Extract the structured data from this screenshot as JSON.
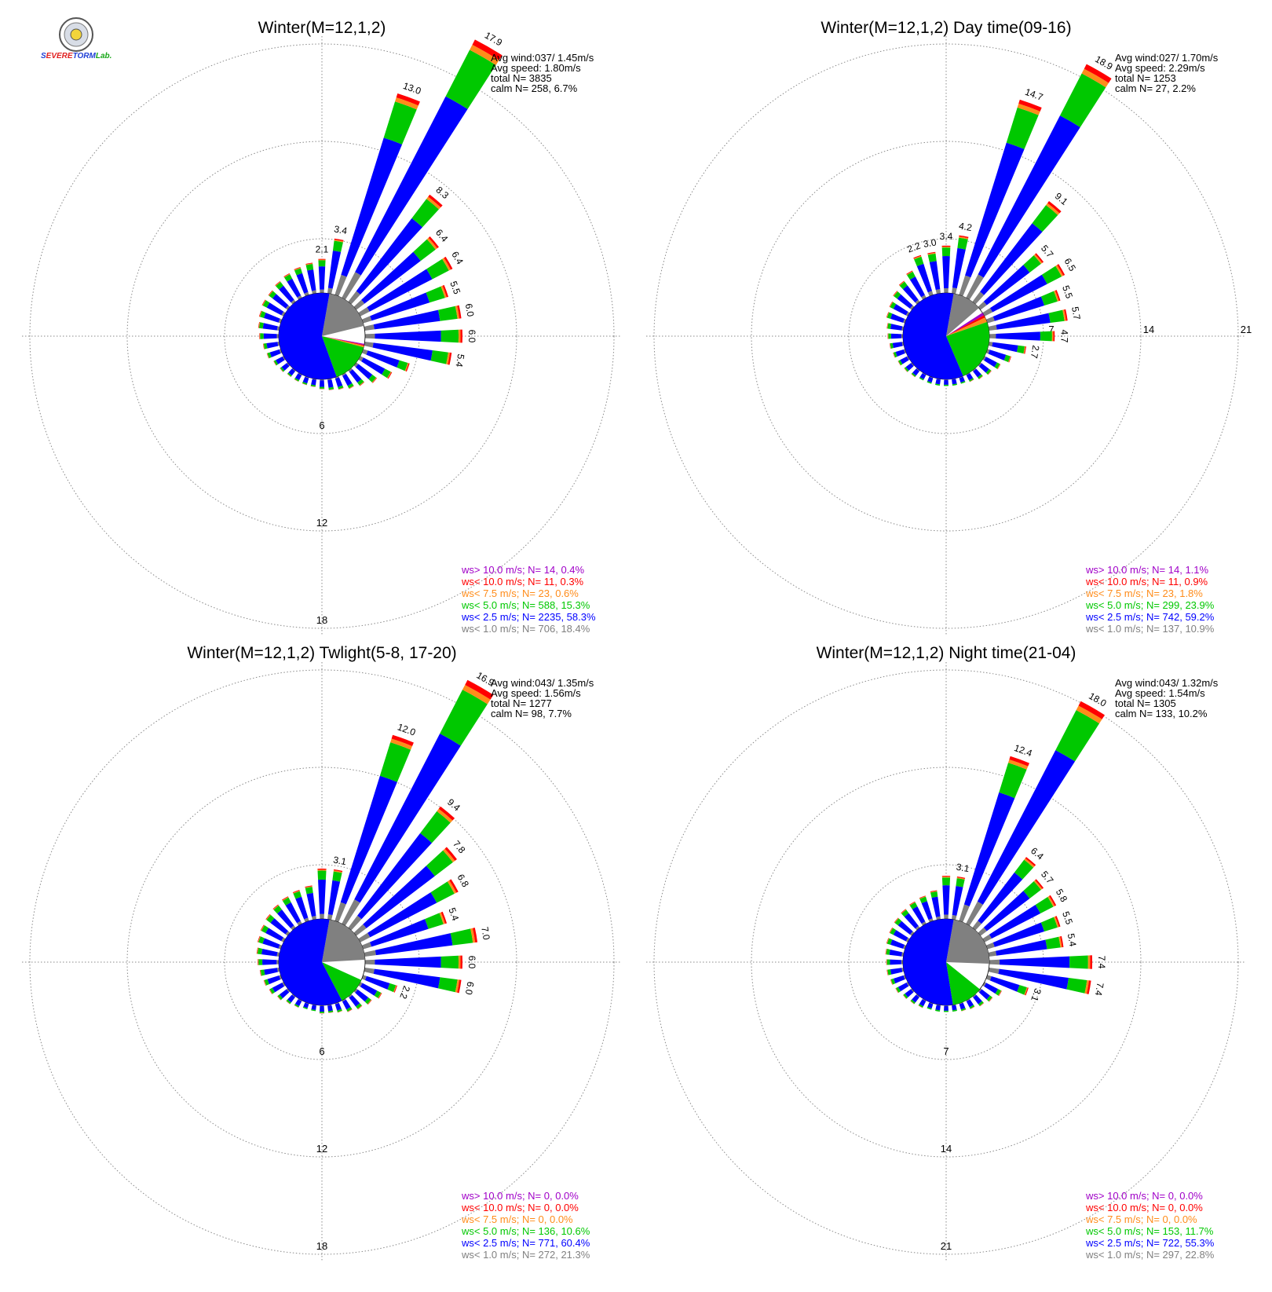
{
  "logo": {
    "part1": "S",
    "part2": "EVERE",
    "part3": "TORM",
    "part4": "Lab."
  },
  "colors": {
    "gt10": "#a000c8",
    "lt10": "#ff0000",
    "lt7_5": "#ff8c1a",
    "lt5": "#00c800",
    "lt2_5": "#0000ff",
    "lt1": "#808080",
    "grid": "#8a8a8a",
    "text": "#000000"
  },
  "chart_data": [
    {
      "type": "windrose",
      "title": "Winter(M=12,1,2)",
      "stats": [
        "Avg wind:037/ 1.45m/s",
        "Avg speed: 1.80m/s",
        "total N=        3835",
        "calm N=    258,   6.7%"
      ],
      "ring_labels": [
        "6",
        "12",
        "18"
      ],
      "ring_label_side": "bottom",
      "rmax": 18,
      "directions_deg": [
        0,
        10,
        20,
        30,
        40,
        50,
        60,
        70,
        80,
        90,
        100,
        110,
        120,
        130,
        140,
        150,
        160,
        170,
        180,
        190,
        200,
        210,
        220,
        230,
        240,
        250,
        260,
        270,
        280,
        290,
        300,
        310,
        320,
        330,
        340,
        350
      ],
      "percent": [
        2.1,
        3.4,
        13.0,
        17.9,
        8.3,
        6.4,
        6.4,
        5.5,
        6.0,
        6.0,
        5.4,
        3.0,
        2.2,
        1.6,
        1.2,
        1.0,
        0.8,
        0.7,
        0.6,
        0.5,
        0.5,
        0.5,
        0.5,
        0.6,
        0.7,
        0.9,
        1.0,
        1.2,
        1.3,
        1.4,
        1.5,
        1.5,
        1.6,
        1.7,
        1.8,
        1.9
      ],
      "bar_labels": [
        {
          "dir": 0,
          "text": "2.1"
        },
        {
          "dir": 10,
          "text": "3.4"
        },
        {
          "dir": 20,
          "text": "13.0"
        },
        {
          "dir": 30,
          "text": "17.9"
        },
        {
          "dir": 40,
          "text": "8.3"
        },
        {
          "dir": 50,
          "text": "6.4"
        },
        {
          "dir": 60,
          "text": "6.4"
        },
        {
          "dir": 70,
          "text": "5.5"
        },
        {
          "dir": 80,
          "text": "6.0"
        },
        {
          "dir": 90,
          "text": "6.0"
        },
        {
          "dir": 100,
          "text": "5.4"
        }
      ],
      "speed_pie": [
        {
          "cls": "lt1",
          "value": 18.4
        },
        {
          "cls": "lt2_5",
          "value": 58.3
        },
        {
          "cls": "lt5",
          "value": 15.3
        },
        {
          "cls": "lt7_5",
          "value": 0.6
        },
        {
          "cls": "lt10",
          "value": 0.3
        },
        {
          "cls": "gt10",
          "value": 0.4
        }
      ],
      "legend": [
        {
          "cls": "gt10",
          "text": "ws> 10.0 m/s; N=    14,  0.4%"
        },
        {
          "cls": "lt10",
          "text": "ws< 10.0 m/s; N=    11,  0.3%"
        },
        {
          "cls": "lt7_5",
          "text": "ws<  7.5 m/s; N=    23,  0.6%"
        },
        {
          "cls": "lt5",
          "text": "ws<  5.0 m/s; N=   588, 15.3%"
        },
        {
          "cls": "lt2_5",
          "text": "ws<  2.5 m/s; N=  2235, 58.3%"
        },
        {
          "cls": "lt1",
          "text": "ws<  1.0 m/s; N=   706, 18.4%"
        }
      ]
    },
    {
      "type": "windrose",
      "title": "Winter(M=12,1,2) Day time(09-16)",
      "stats": [
        "Avg wind:027/ 1.70m/s",
        "Avg speed: 2.29m/s",
        "total N=        1253",
        "calm N=     27,   2.2%"
      ],
      "ring_labels": [
        "7",
        "14",
        "21"
      ],
      "ring_label_side": "right",
      "rmax": 21,
      "directions_deg": [
        0,
        10,
        20,
        30,
        40,
        50,
        60,
        70,
        80,
        90,
        100,
        110,
        120,
        130,
        140,
        150,
        160,
        170,
        180,
        190,
        200,
        210,
        220,
        230,
        240,
        250,
        260,
        270,
        280,
        290,
        300,
        310,
        320,
        330,
        340,
        350
      ],
      "percent": [
        3.4,
        4.2,
        14.7,
        18.9,
        9.1,
        5.7,
        6.5,
        5.5,
        5.7,
        4.7,
        2.7,
        1.8,
        1.3,
        1.0,
        0.8,
        0.6,
        0.5,
        0.5,
        0.5,
        0.5,
        0.5,
        0.5,
        0.6,
        0.7,
        0.8,
        0.9,
        1.0,
        1.1,
        1.2,
        1.4,
        1.5,
        1.7,
        1.9,
        2.2,
        3.0,
        3.0
      ],
      "bar_labels": [
        {
          "dir": 340,
          "text": "2.2"
        },
        {
          "dir": 350,
          "text": "3.0"
        },
        {
          "dir": 0,
          "text": "3.4"
        },
        {
          "dir": 10,
          "text": "4.2"
        },
        {
          "dir": 20,
          "text": "14.7"
        },
        {
          "dir": 30,
          "text": "18.9"
        },
        {
          "dir": 40,
          "text": "9.1"
        },
        {
          "dir": 50,
          "text": "5.7"
        },
        {
          "dir": 60,
          "text": "6.5"
        },
        {
          "dir": 70,
          "text": "5.5"
        },
        {
          "dir": 80,
          "text": "5.7"
        },
        {
          "dir": 90,
          "text": "4.7"
        },
        {
          "dir": 100,
          "text": "2.7"
        }
      ],
      "speed_pie": [
        {
          "cls": "lt1",
          "value": 10.9
        },
        {
          "cls": "lt2_5",
          "value": 59.2
        },
        {
          "cls": "lt5",
          "value": 23.9
        },
        {
          "cls": "lt7_5",
          "value": 1.8
        },
        {
          "cls": "lt10",
          "value": 0.9
        },
        {
          "cls": "gt10",
          "value": 1.1
        }
      ],
      "legend": [
        {
          "cls": "gt10",
          "text": "ws> 10.0 m/s; N=    14,  1.1%"
        },
        {
          "cls": "lt10",
          "text": "ws< 10.0 m/s; N=    11,  0.9%"
        },
        {
          "cls": "lt7_5",
          "text": "ws<  7.5 m/s; N=    23,  1.8%"
        },
        {
          "cls": "lt5",
          "text": "ws<  5.0 m/s; N=   299, 23.9%"
        },
        {
          "cls": "lt2_5",
          "text": "ws<  2.5 m/s; N=   742, 59.2%"
        },
        {
          "cls": "lt1",
          "text": "ws<  1.0 m/s; N=   137, 10.9%"
        }
      ]
    },
    {
      "type": "windrose",
      "title": "Winter(M=12,1,2) Twlight(5-8, 17-20)",
      "stats": [
        "Avg wind:043/ 1.35m/s",
        "Avg speed: 1.56m/s",
        "total N=        1277",
        "calm N=     98,   7.7%"
      ],
      "ring_labels": [
        "6",
        "12",
        "18"
      ],
      "ring_label_side": "bottom",
      "rmax": 18,
      "directions_deg": [
        0,
        10,
        20,
        30,
        40,
        50,
        60,
        70,
        80,
        90,
        100,
        110,
        120,
        130,
        140,
        150,
        160,
        170,
        180,
        190,
        200,
        210,
        220,
        230,
        240,
        250,
        260,
        270,
        280,
        290,
        300,
        310,
        320,
        330,
        340,
        350
      ],
      "percent": [
        3.1,
        3.1,
        12.0,
        16.9,
        9.4,
        7.8,
        6.8,
        5.4,
        7.0,
        6.0,
        6.0,
        2.2,
        1.5,
        1.2,
        1.0,
        0.8,
        0.6,
        0.5,
        0.5,
        0.4,
        0.4,
        0.5,
        0.6,
        0.8,
        1.0,
        1.1,
        1.2,
        1.3,
        1.4,
        1.5,
        1.6,
        1.7,
        1.8,
        1.9,
        2.0,
        2.1
      ],
      "bar_labels": [
        {
          "dir": 10,
          "text": "3.1"
        },
        {
          "dir": 20,
          "text": "12.0"
        },
        {
          "dir": 30,
          "text": "16.9"
        },
        {
          "dir": 40,
          "text": "9.4"
        },
        {
          "dir": 50,
          "text": "7.8"
        },
        {
          "dir": 60,
          "text": "6.8"
        },
        {
          "dir": 70,
          "text": "5.4"
        },
        {
          "dir": 80,
          "text": "7.0"
        },
        {
          "dir": 90,
          "text": "6.0"
        },
        {
          "dir": 100,
          "text": "6.0"
        },
        {
          "dir": 110,
          "text": "2.2"
        }
      ],
      "speed_pie": [
        {
          "cls": "lt1",
          "value": 21.3
        },
        {
          "cls": "lt2_5",
          "value": 60.4
        },
        {
          "cls": "lt5",
          "value": 10.6
        },
        {
          "cls": "lt7_5",
          "value": 0.0
        },
        {
          "cls": "lt10",
          "value": 0.0
        },
        {
          "cls": "gt10",
          "value": 0.0
        }
      ],
      "legend": [
        {
          "cls": "gt10",
          "text": "ws> 10.0 m/s; N=     0,  0.0%"
        },
        {
          "cls": "lt10",
          "text": "ws< 10.0 m/s; N=     0,  0.0%"
        },
        {
          "cls": "lt7_5",
          "text": "ws<  7.5 m/s; N=     0,  0.0%"
        },
        {
          "cls": "lt5",
          "text": "ws<  5.0 m/s; N=   136, 10.6%"
        },
        {
          "cls": "lt2_5",
          "text": "ws<  2.5 m/s; N=   771, 60.4%"
        },
        {
          "cls": "lt1",
          "text": "ws<  1.0 m/s; N=   272, 21.3%"
        }
      ]
    },
    {
      "type": "windrose",
      "title": "Winter(M=12,1,2) Night time(21-04)",
      "stats": [
        "Avg wind:043/ 1.32m/s",
        "Avg speed: 1.54m/s",
        "total N=        1305",
        "calm N=    133,  10.2%"
      ],
      "ring_labels": [
        "7",
        "14",
        "21"
      ],
      "ring_label_side": "bottom",
      "rmax": 21,
      "directions_deg": [
        0,
        10,
        20,
        30,
        40,
        50,
        60,
        70,
        80,
        90,
        100,
        110,
        120,
        130,
        140,
        150,
        160,
        170,
        180,
        190,
        200,
        210,
        220,
        230,
        240,
        250,
        260,
        270,
        280,
        290,
        300,
        310,
        320,
        330,
        340,
        350
      ],
      "percent": [
        3.1,
        3.1,
        12.4,
        18.0,
        6.4,
        5.7,
        5.8,
        5.5,
        5.4,
        7.4,
        7.4,
        3.1,
        1.4,
        1.1,
        0.9,
        0.7,
        0.6,
        0.5,
        0.5,
        0.5,
        0.5,
        0.6,
        0.7,
        0.8,
        1.0,
        1.1,
        1.2,
        1.2,
        1.3,
        1.4,
        1.5,
        1.6,
        1.7,
        1.8,
        1.9,
        2.1
      ],
      "bar_labels": [
        {
          "dir": 10,
          "text": "3.1"
        },
        {
          "dir": 20,
          "text": "12.4"
        },
        {
          "dir": 30,
          "text": "18.0"
        },
        {
          "dir": 40,
          "text": "6.4"
        },
        {
          "dir": 50,
          "text": "5.7"
        },
        {
          "dir": 60,
          "text": "5.8"
        },
        {
          "dir": 70,
          "text": "5.5"
        },
        {
          "dir": 80,
          "text": "5.4"
        },
        {
          "dir": 90,
          "text": "7.4"
        },
        {
          "dir": 100,
          "text": "7.4"
        },
        {
          "dir": 110,
          "text": "3.1"
        }
      ],
      "speed_pie": [
        {
          "cls": "lt1",
          "value": 22.8
        },
        {
          "cls": "lt2_5",
          "value": 55.3
        },
        {
          "cls": "lt5",
          "value": 11.7
        },
        {
          "cls": "lt7_5",
          "value": 0.0
        },
        {
          "cls": "lt10",
          "value": 0.0
        },
        {
          "cls": "gt10",
          "value": 0.0
        }
      ],
      "legend": [
        {
          "cls": "gt10",
          "text": "ws> 10.0 m/s; N=     0,  0.0%"
        },
        {
          "cls": "lt10",
          "text": "ws< 10.0 m/s; N=     0,  0.0%"
        },
        {
          "cls": "lt7_5",
          "text": "ws<  7.5 m/s; N=     0,  0.0%"
        },
        {
          "cls": "lt5",
          "text": "ws<  5.0 m/s; N=   153, 11.7%"
        },
        {
          "cls": "lt2_5",
          "text": "ws<  2.5 m/s; N=   722, 55.3%"
        },
        {
          "cls": "lt1",
          "text": "ws<  1.0 m/s; N=   297, 22.8%"
        }
      ]
    }
  ]
}
